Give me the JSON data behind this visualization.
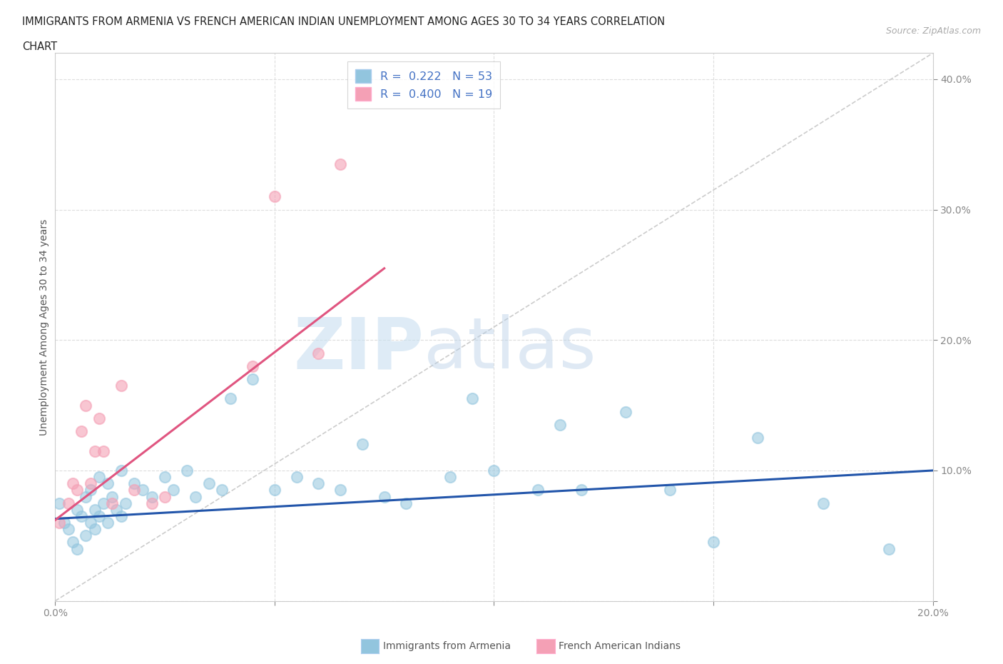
{
  "title_line1": "IMMIGRANTS FROM ARMENIA VS FRENCH AMERICAN INDIAN UNEMPLOYMENT AMONG AGES 30 TO 34 YEARS CORRELATION",
  "title_line2": "CHART",
  "source_text": "Source: ZipAtlas.com",
  "ylabel": "Unemployment Among Ages 30 to 34 years",
  "xlim": [
    0.0,
    0.2
  ],
  "ylim": [
    0.0,
    0.42
  ],
  "x_ticks": [
    0.0,
    0.05,
    0.1,
    0.15,
    0.2
  ],
  "y_ticks": [
    0.0,
    0.1,
    0.2,
    0.3,
    0.4
  ],
  "color_blue": "#92c5de",
  "color_pink": "#f4a0b5",
  "trendline_color_blue": "#2255aa",
  "trendline_color_pink": "#e05580",
  "trendline_gray": "#c0c0c0",
  "blue_scatter_x": [
    0.001,
    0.002,
    0.003,
    0.004,
    0.005,
    0.005,
    0.006,
    0.007,
    0.007,
    0.008,
    0.008,
    0.009,
    0.009,
    0.01,
    0.01,
    0.011,
    0.012,
    0.012,
    0.013,
    0.014,
    0.015,
    0.015,
    0.016,
    0.018,
    0.02,
    0.022,
    0.025,
    0.027,
    0.03,
    0.032,
    0.035,
    0.038,
    0.04,
    0.045,
    0.05,
    0.055,
    0.06,
    0.065,
    0.07,
    0.075,
    0.08,
    0.09,
    0.095,
    0.1,
    0.11,
    0.115,
    0.12,
    0.13,
    0.14,
    0.15,
    0.16,
    0.175,
    0.19
  ],
  "blue_scatter_y": [
    0.075,
    0.06,
    0.055,
    0.045,
    0.07,
    0.04,
    0.065,
    0.08,
    0.05,
    0.085,
    0.06,
    0.07,
    0.055,
    0.095,
    0.065,
    0.075,
    0.09,
    0.06,
    0.08,
    0.07,
    0.1,
    0.065,
    0.075,
    0.09,
    0.085,
    0.08,
    0.095,
    0.085,
    0.1,
    0.08,
    0.09,
    0.085,
    0.155,
    0.17,
    0.085,
    0.095,
    0.09,
    0.085,
    0.12,
    0.08,
    0.075,
    0.095,
    0.155,
    0.1,
    0.085,
    0.135,
    0.085,
    0.145,
    0.085,
    0.045,
    0.125,
    0.075,
    0.04
  ],
  "pink_scatter_x": [
    0.001,
    0.003,
    0.004,
    0.005,
    0.006,
    0.007,
    0.008,
    0.009,
    0.01,
    0.011,
    0.013,
    0.015,
    0.018,
    0.022,
    0.025,
    0.045,
    0.05,
    0.06,
    0.065
  ],
  "pink_scatter_y": [
    0.06,
    0.075,
    0.09,
    0.085,
    0.13,
    0.15,
    0.09,
    0.115,
    0.14,
    0.115,
    0.075,
    0.165,
    0.085,
    0.075,
    0.08,
    0.18,
    0.31,
    0.19,
    0.335
  ],
  "blue_trend_x": [
    0.0,
    0.2
  ],
  "blue_trend_y": [
    0.063,
    0.1
  ],
  "pink_trend_x": [
    0.0,
    0.075
  ],
  "pink_trend_y": [
    0.062,
    0.255
  ],
  "gray_trend_x": [
    0.0,
    0.2
  ],
  "gray_trend_y": [
    0.0,
    0.42
  ]
}
